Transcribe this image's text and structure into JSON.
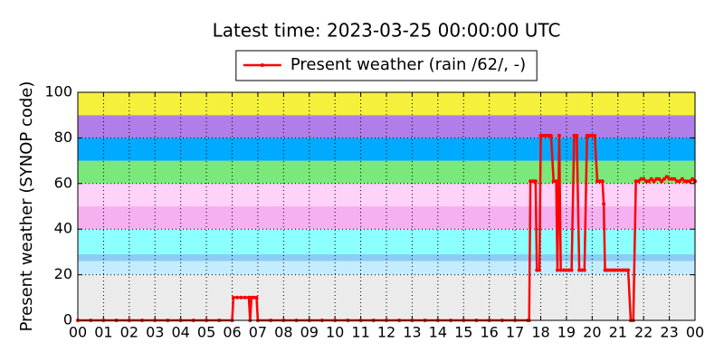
{
  "chart_data": {
    "type": "line",
    "title": "Latest time: 2023-03-25 00:00:00 UTC",
    "ylabel": "Present weather (SYNOP code)",
    "legend": "upper center",
    "grid": true,
    "xlim": [
      0,
      24
    ],
    "ylim": [
      0,
      100
    ],
    "yticks": [
      0,
      20,
      40,
      60,
      80,
      100
    ],
    "xticks": [
      {
        "value": 0,
        "label": "00"
      },
      {
        "value": 1,
        "label": "01"
      },
      {
        "value": 2,
        "label": "02"
      },
      {
        "value": 3,
        "label": "03"
      },
      {
        "value": 4,
        "label": "04"
      },
      {
        "value": 5,
        "label": "05"
      },
      {
        "value": 6,
        "label": "06"
      },
      {
        "value": 7,
        "label": "07"
      },
      {
        "value": 8,
        "label": "08"
      },
      {
        "value": 9,
        "label": "09"
      },
      {
        "value": 10,
        "label": "10"
      },
      {
        "value": 11,
        "label": "11"
      },
      {
        "value": 12,
        "label": "12"
      },
      {
        "value": 13,
        "label": "13"
      },
      {
        "value": 14,
        "label": "14"
      },
      {
        "value": 15,
        "label": "15"
      },
      {
        "value": 16,
        "label": "16"
      },
      {
        "value": 17,
        "label": "17"
      },
      {
        "value": 18,
        "label": "18"
      },
      {
        "value": 19,
        "label": "19"
      },
      {
        "value": 20,
        "label": "20"
      },
      {
        "value": 21,
        "label": "21"
      },
      {
        "value": 22,
        "label": "22"
      },
      {
        "value": 23,
        "label": "23"
      },
      {
        "value": 24,
        "label": "00"
      }
    ],
    "bands": [
      {
        "from": 0,
        "to": 20,
        "color": "#ebebeb"
      },
      {
        "from": 20,
        "to": 26,
        "color": "#c4ecff"
      },
      {
        "from": 26,
        "to": 29,
        "color": "#8ccdf5"
      },
      {
        "from": 29,
        "to": 40,
        "color": "#8cffff"
      },
      {
        "from": 40,
        "to": 50,
        "color": "#f5b0f0"
      },
      {
        "from": 50,
        "to": 60,
        "color": "#ffd2fa"
      },
      {
        "from": 60,
        "to": 70,
        "color": "#7ae87a"
      },
      {
        "from": 70,
        "to": 80,
        "color": "#00aaff"
      },
      {
        "from": 80,
        "to": 90,
        "color": "#b07ee8"
      },
      {
        "from": 90,
        "to": 100,
        "color": "#f5f03c"
      }
    ],
    "series": [
      {
        "name": "Present weather (rain /62/, -)",
        "color": "#ff0000",
        "x": [
          0,
          0.5,
          1,
          1.5,
          2,
          2.5,
          3,
          3.5,
          4,
          4.5,
          5,
          5.5,
          6,
          6.05,
          6.2,
          6.35,
          6.5,
          6.65,
          6.7,
          6.75,
          6.85,
          6.95,
          7,
          7.5,
          8,
          8.5,
          9,
          9.5,
          10,
          10.5,
          11,
          11.5,
          12,
          12.5,
          13,
          13.5,
          14,
          14.5,
          15,
          15.5,
          16,
          16.5,
          17,
          17.5,
          17.55,
          17.6,
          17.7,
          17.8,
          17.85,
          17.95,
          18,
          18.1,
          18.2,
          18.3,
          18.4,
          18.5,
          18.6,
          18.65,
          18.72,
          18.78,
          18.9,
          19,
          19.1,
          19.2,
          19.3,
          19.4,
          19.5,
          19.6,
          19.7,
          19.8,
          19.9,
          20,
          20.1,
          20.2,
          20.3,
          20.4,
          20.45,
          20.5,
          20.6,
          20.7,
          20.8,
          20.9,
          21,
          21.1,
          21.2,
          21.3,
          21.4,
          21.5,
          21.6,
          21.7,
          21.8,
          21.9,
          22,
          22.1,
          22.2,
          22.3,
          22.4,
          22.5,
          22.6,
          22.7,
          22.8,
          22.9,
          23,
          23.1,
          23.2,
          23.3,
          23.4,
          23.5,
          23.6,
          23.7,
          23.8,
          23.9,
          24
        ],
        "values": [
          0,
          0,
          0,
          0,
          0,
          0,
          0,
          0,
          0,
          0,
          0,
          0,
          0,
          10,
          10,
          10,
          10,
          10,
          0,
          10,
          10,
          10,
          0,
          0,
          0,
          0,
          0,
          0,
          0,
          0,
          0,
          0,
          0,
          0,
          0,
          0,
          0,
          0,
          0,
          0,
          0,
          0,
          0,
          0,
          0,
          61,
          61,
          61,
          22,
          22,
          81,
          81,
          81,
          81,
          81,
          61,
          61,
          22,
          81,
          22,
          22,
          22,
          22,
          22,
          81,
          81,
          22,
          22,
          22,
          81,
          81,
          81,
          81,
          61,
          61,
          61,
          51,
          22,
          22,
          22,
          22,
          22,
          22,
          22,
          22,
          22,
          22,
          0,
          0,
          61,
          61,
          62,
          62,
          61,
          61,
          62,
          61,
          62,
          62,
          61,
          62,
          63,
          62,
          62,
          62,
          61,
          61,
          62,
          61,
          61,
          61,
          62,
          61
        ]
      }
    ]
  }
}
